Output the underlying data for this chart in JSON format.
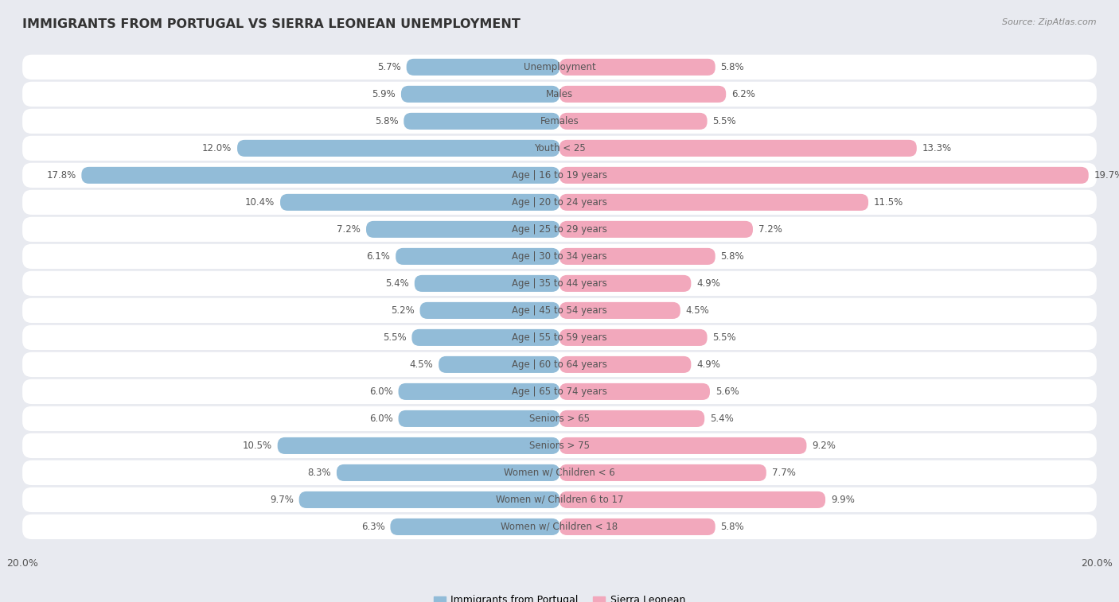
{
  "title": "IMMIGRANTS FROM PORTUGAL VS SIERRA LEONEAN UNEMPLOYMENT",
  "source": "Source: ZipAtlas.com",
  "categories": [
    "Unemployment",
    "Males",
    "Females",
    "Youth < 25",
    "Age | 16 to 19 years",
    "Age | 20 to 24 years",
    "Age | 25 to 29 years",
    "Age | 30 to 34 years",
    "Age | 35 to 44 years",
    "Age | 45 to 54 years",
    "Age | 55 to 59 years",
    "Age | 60 to 64 years",
    "Age | 65 to 74 years",
    "Seniors > 65",
    "Seniors > 75",
    "Women w/ Children < 6",
    "Women w/ Children 6 to 17",
    "Women w/ Children < 18"
  ],
  "left_values": [
    5.7,
    5.9,
    5.8,
    12.0,
    17.8,
    10.4,
    7.2,
    6.1,
    5.4,
    5.2,
    5.5,
    4.5,
    6.0,
    6.0,
    10.5,
    8.3,
    9.7,
    6.3
  ],
  "right_values": [
    5.8,
    6.2,
    5.5,
    13.3,
    19.7,
    11.5,
    7.2,
    5.8,
    4.9,
    4.5,
    5.5,
    4.9,
    5.6,
    5.4,
    9.2,
    7.7,
    9.9,
    5.8
  ],
  "left_color": "#92bcd8",
  "right_color": "#f2a8bc",
  "background_color": "#e8eaf0",
  "row_bg_color": "#ffffff",
  "max_val": 20.0,
  "legend_left": "Immigrants from Portugal",
  "legend_right": "Sierra Leonean",
  "title_fontsize": 11.5,
  "label_fontsize": 8.5,
  "value_fontsize": 8.5
}
